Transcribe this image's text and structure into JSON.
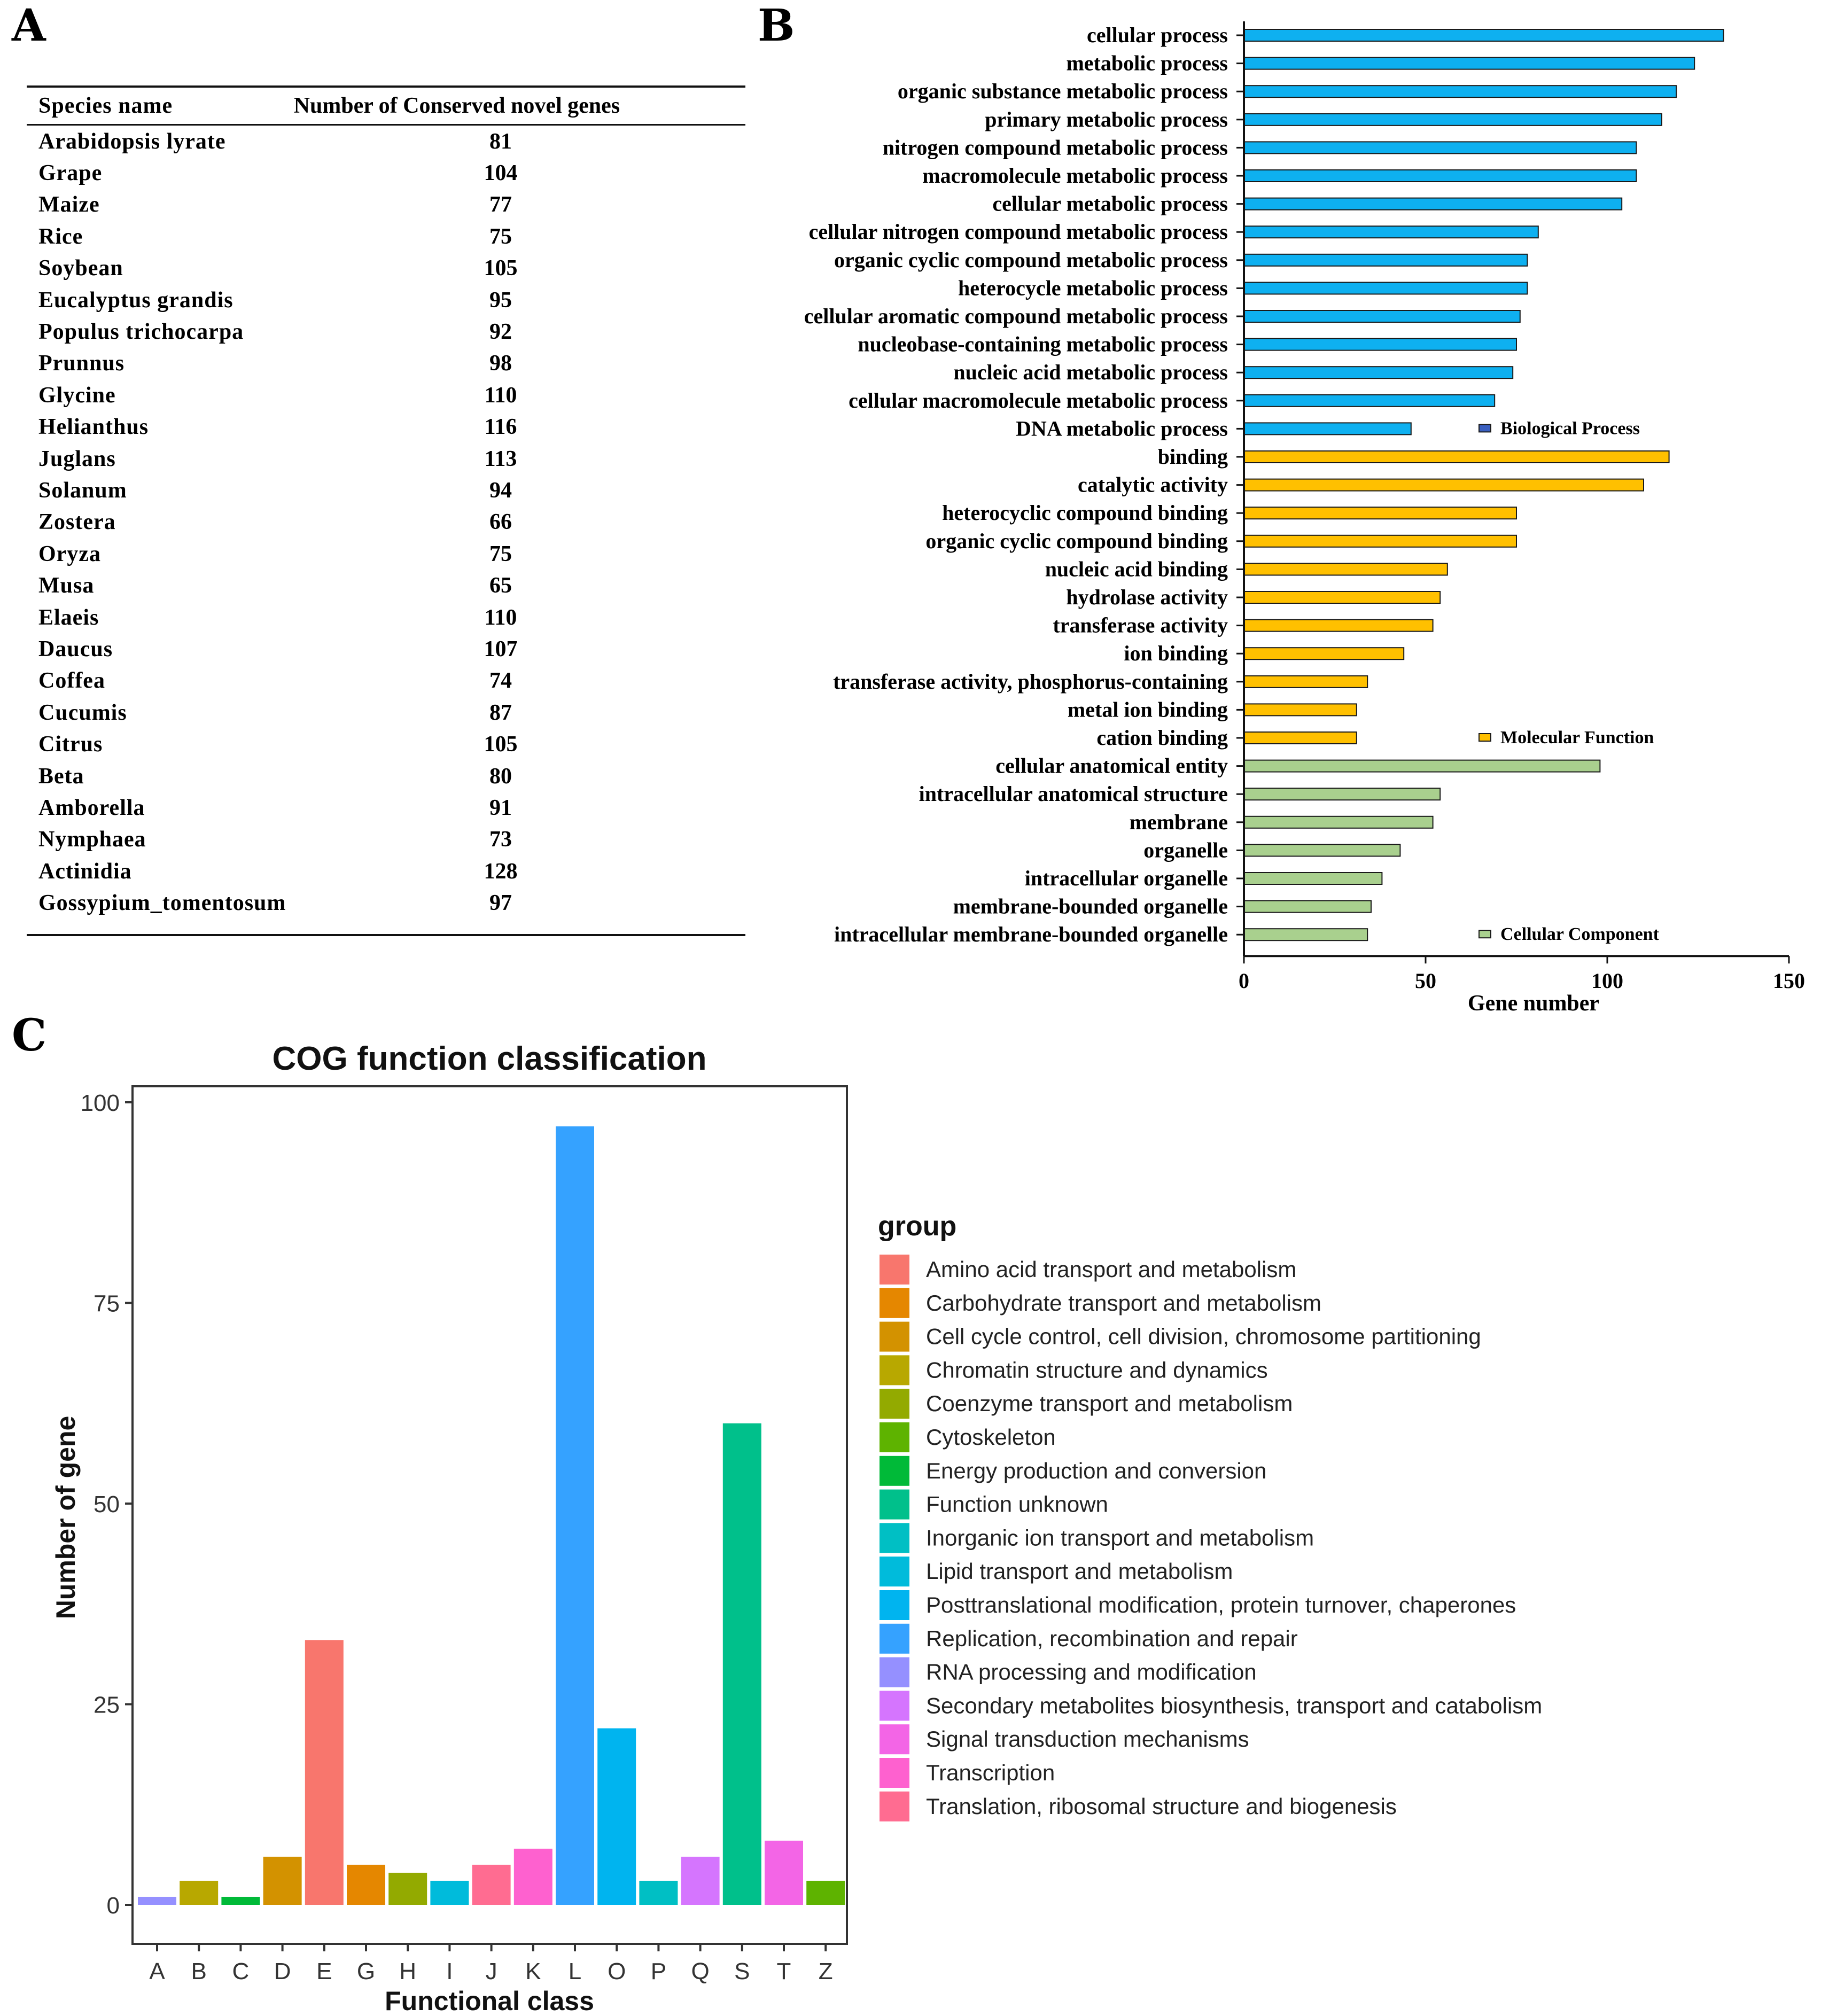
{
  "panels": {
    "a_label": "A",
    "b_label": "B",
    "c_label": "C"
  },
  "table": {
    "headers": [
      "Species name",
      "Number of Conserved novel genes"
    ],
    "rows": [
      {
        "species": "Arabidopsis lyrate",
        "count": "81"
      },
      {
        "species": "Grape",
        "count": "104"
      },
      {
        "species": "Maize",
        "count": "77"
      },
      {
        "species": "Rice",
        "count": "75"
      },
      {
        "species": "Soybean",
        "count": "105"
      },
      {
        "species": "Eucalyptus grandis",
        "count": "95"
      },
      {
        "species": "Populus trichocarpa",
        "count": "92"
      },
      {
        "species": "Prunnus",
        "count": "98"
      },
      {
        "species": "Glycine",
        "count": "110"
      },
      {
        "species": "Helianthus",
        "count": "116"
      },
      {
        "species": "Juglans",
        "count": "113"
      },
      {
        "species": "Solanum",
        "count": "94"
      },
      {
        "species": "Zostera",
        "count": "66"
      },
      {
        "species": "Oryza",
        "count": "75"
      },
      {
        "species": "Musa",
        "count": "65"
      },
      {
        "species": "Elaeis",
        "count": "110"
      },
      {
        "species": "Daucus",
        "count": "107"
      },
      {
        "species": "Coffea",
        "count": "74"
      },
      {
        "species": "Cucumis",
        "count": "87"
      },
      {
        "species": "Citrus",
        "count": "105"
      },
      {
        "species": "Beta",
        "count": "80"
      },
      {
        "species": "Amborella",
        "count": "91"
      },
      {
        "species": "Nymphaea",
        "count": "73"
      },
      {
        "species": "Actinidia",
        "count": "128"
      },
      {
        "species": "Gossypium_tomentosum",
        "count": "97"
      }
    ]
  },
  "chart_data": [
    {
      "type": "bar",
      "orientation": "horizontal",
      "title": "",
      "xlabel": "Gene number",
      "ylabel": "",
      "xlim": [
        0,
        150
      ],
      "xticks": [
        "0",
        "50",
        "100",
        "150"
      ],
      "series": [
        {
          "name": "Biological Process",
          "color": "#0eb0f0",
          "legend_color": "#3a5fc0",
          "categories": [
            "cellular process",
            "metabolic process",
            "organic substance metabolic process",
            "primary metabolic process",
            "nitrogen compound metabolic process",
            "macromolecule metabolic process",
            "cellular metabolic process",
            "cellular nitrogen compound metabolic process",
            "organic cyclic compound metabolic process",
            "heterocycle metabolic process",
            "cellular aromatic compound metabolic process",
            "nucleobase-containing metabolic process",
            "nucleic acid metabolic process",
            "cellular macromolecule metabolic process",
            "DNA metabolic process"
          ],
          "values": [
            132,
            124,
            119,
            115,
            108,
            108,
            104,
            81,
            78,
            78,
            76,
            75,
            74,
            69,
            46
          ]
        },
        {
          "name": "Molecular Function",
          "color": "#ffc000",
          "legend_color": "#ffc000",
          "categories": [
            "binding",
            "catalytic activity",
            "heterocyclic compound binding",
            "organic cyclic compound binding",
            "nucleic acid binding",
            "hydrolase activity",
            "transferase activity",
            "ion binding",
            "transferase activity, phosphorus-containing",
            "metal ion binding",
            "cation binding"
          ],
          "values": [
            117,
            110,
            75,
            75,
            56,
            54,
            52,
            44,
            34,
            31,
            31
          ]
        },
        {
          "name": "Cellular Component",
          "color": "#a9d08e",
          "legend_color": "#a9d08e",
          "categories": [
            "cellular anatomical entity",
            "intracellular anatomical structure",
            "membrane",
            "organelle",
            "intracellular organelle",
            "membrane-bounded organelle",
            "intracellular membrane-bounded organelle"
          ],
          "values": [
            98,
            54,
            52,
            43,
            38,
            35,
            34
          ]
        }
      ]
    },
    {
      "type": "bar",
      "title": "COG function classification",
      "xlabel": "Functional class",
      "ylabel": "Number of gene",
      "ylim": [
        0,
        100
      ],
      "yticks": [
        "0",
        "25",
        "50",
        "75",
        "100"
      ],
      "grid": false,
      "legend_position": "right",
      "legend_title": "group",
      "categories": [
        "A",
        "B",
        "C",
        "D",
        "E",
        "G",
        "H",
        "I",
        "J",
        "K",
        "L",
        "O",
        "P",
        "Q",
        "S",
        "T",
        "Z"
      ],
      "values": [
        1,
        3,
        1,
        6,
        33,
        5,
        4,
        3,
        5,
        7,
        97,
        22,
        3,
        6,
        60,
        8,
        3
      ],
      "bar_colors": [
        "#9590ff",
        "#b8a800",
        "#00ba38",
        "#d39200",
        "#f8766d",
        "#e58700",
        "#93aa00",
        "#00bbdb",
        "#ff6c91",
        "#fe61cf",
        "#35a2ff",
        "#00b4ef",
        "#00bfc4",
        "#d575fe",
        "#00c08b",
        "#f365e6",
        "#5eb300"
      ],
      "legend": [
        {
          "label": "Amino acid transport and metabolism",
          "color": "#f8766d"
        },
        {
          "label": "Carbohydrate transport and metabolism",
          "color": "#e58700"
        },
        {
          "label": "Cell cycle control, cell division, chromosome partitioning",
          "color": "#d39200"
        },
        {
          "label": "Chromatin structure and dynamics",
          "color": "#b8a800"
        },
        {
          "label": "Coenzyme transport and metabolism",
          "color": "#93aa00"
        },
        {
          "label": "Cytoskeleton",
          "color": "#5eb300"
        },
        {
          "label": "Energy production and conversion",
          "color": "#00ba38"
        },
        {
          "label": "Function unknown",
          "color": "#00c08b"
        },
        {
          "label": "Inorganic ion transport and metabolism",
          "color": "#00bfc4"
        },
        {
          "label": "Lipid transport and metabolism",
          "color": "#00bbdb"
        },
        {
          "label": "Posttranslational modification, protein turnover, chaperones",
          "color": "#00b4ef"
        },
        {
          "label": "Replication, recombination and repair",
          "color": "#35a2ff"
        },
        {
          "label": "RNA processing and modification",
          "color": "#9590ff"
        },
        {
          "label": "Secondary metabolites biosynthesis, transport and catabolism",
          "color": "#d575fe"
        },
        {
          "label": "Signal transduction mechanisms",
          "color": "#f365e6"
        },
        {
          "label": "Transcription",
          "color": "#fe61cf"
        },
        {
          "label": "Translation, ribosomal structure and biogenesis",
          "color": "#ff6c91"
        }
      ]
    }
  ]
}
